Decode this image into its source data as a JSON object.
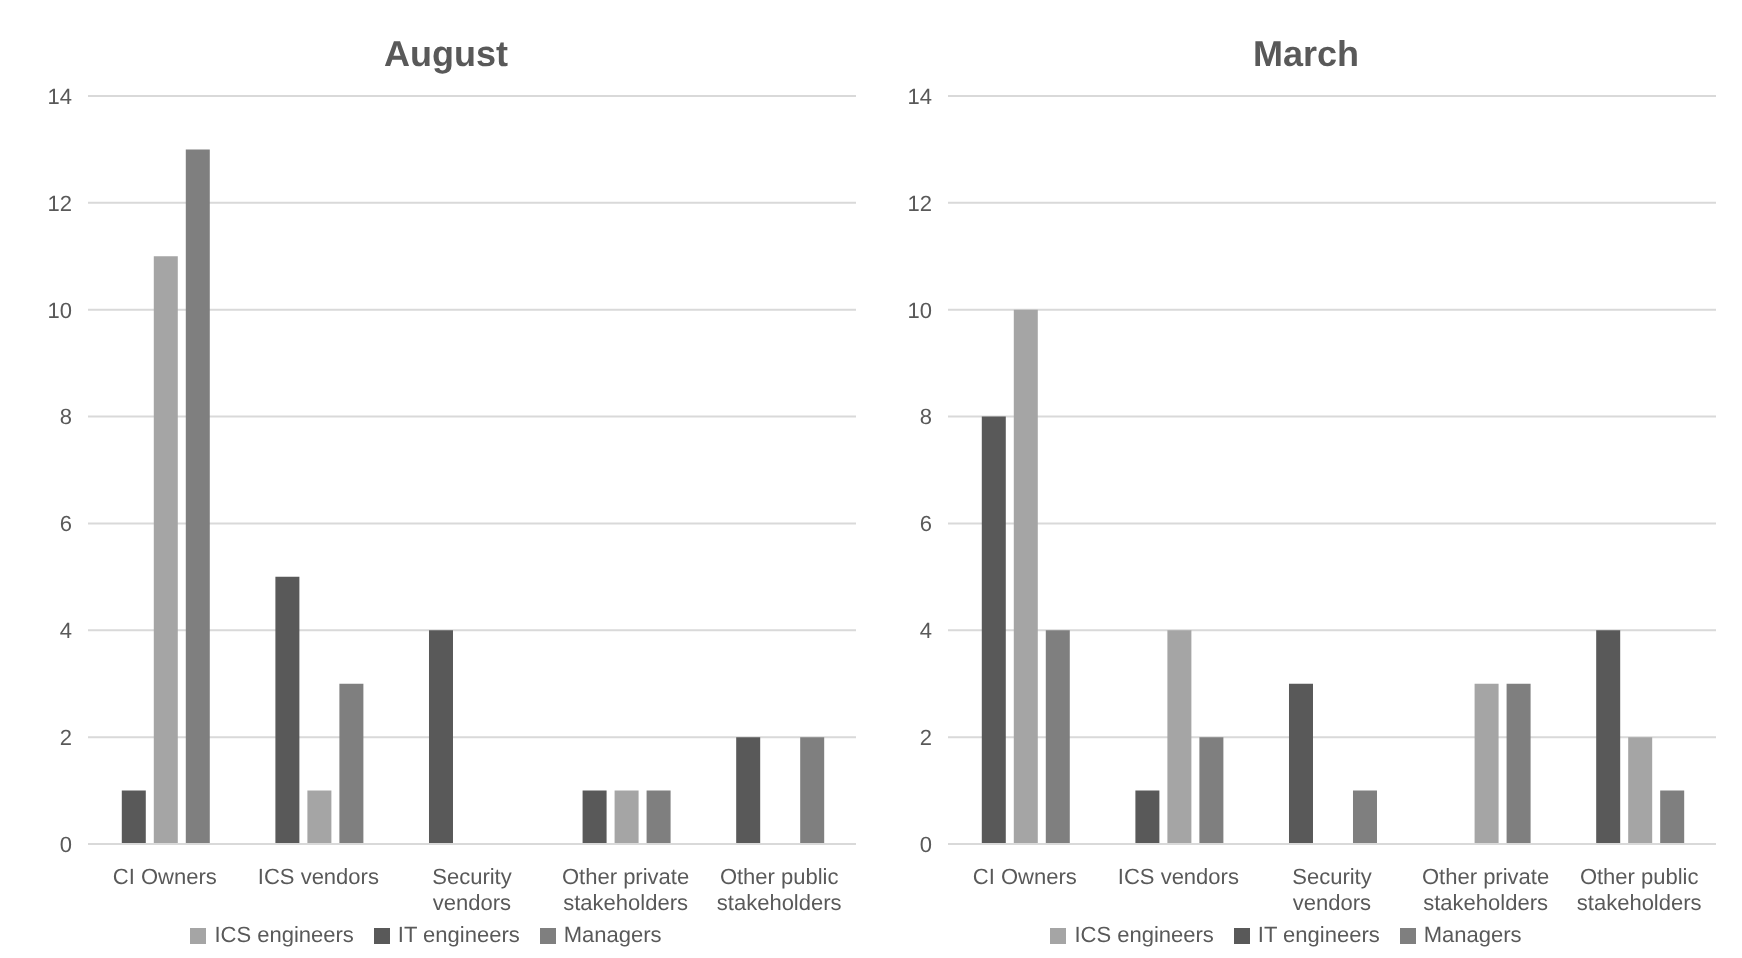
{
  "chart_data": [
    {
      "type": "bar",
      "title": "August",
      "categories": [
        "CI Owners",
        "ICS vendors",
        "Security vendors",
        "Other private stakeholders",
        "Other public stakeholders"
      ],
      "series": [
        {
          "name": "IT engineers",
          "color": "#595959",
          "values": [
            1,
            5,
            4,
            1,
            2
          ]
        },
        {
          "name": "ICS engineers",
          "color": "#a5a5a5",
          "values": [
            11,
            1,
            null,
            1,
            null
          ]
        },
        {
          "name": "Managers",
          "color": "#7f7f7f",
          "values": [
            13,
            3,
            null,
            1,
            2
          ]
        }
      ],
      "ylim": [
        0,
        14
      ],
      "yticks": [
        0,
        2,
        4,
        6,
        8,
        10,
        12,
        14
      ],
      "grid": "y",
      "legend": "bottom"
    },
    {
      "type": "bar",
      "title": "March",
      "categories": [
        "CI Owners",
        "ICS vendors",
        "Security vendors",
        "Other private stakeholders",
        "Other public stakeholders"
      ],
      "series": [
        {
          "name": "IT engineers",
          "color": "#595959",
          "values": [
            8,
            1,
            3,
            null,
            4
          ]
        },
        {
          "name": "ICS engineers",
          "color": "#a5a5a5",
          "values": [
            10,
            4,
            null,
            3,
            2
          ]
        },
        {
          "name": "Managers",
          "color": "#7f7f7f",
          "values": [
            4,
            2,
            1,
            3,
            1
          ]
        }
      ],
      "ylim": [
        0,
        14
      ],
      "yticks": [
        0,
        2,
        4,
        6,
        8,
        10,
        12,
        14
      ],
      "grid": "y",
      "legend": "bottom"
    }
  ]
}
